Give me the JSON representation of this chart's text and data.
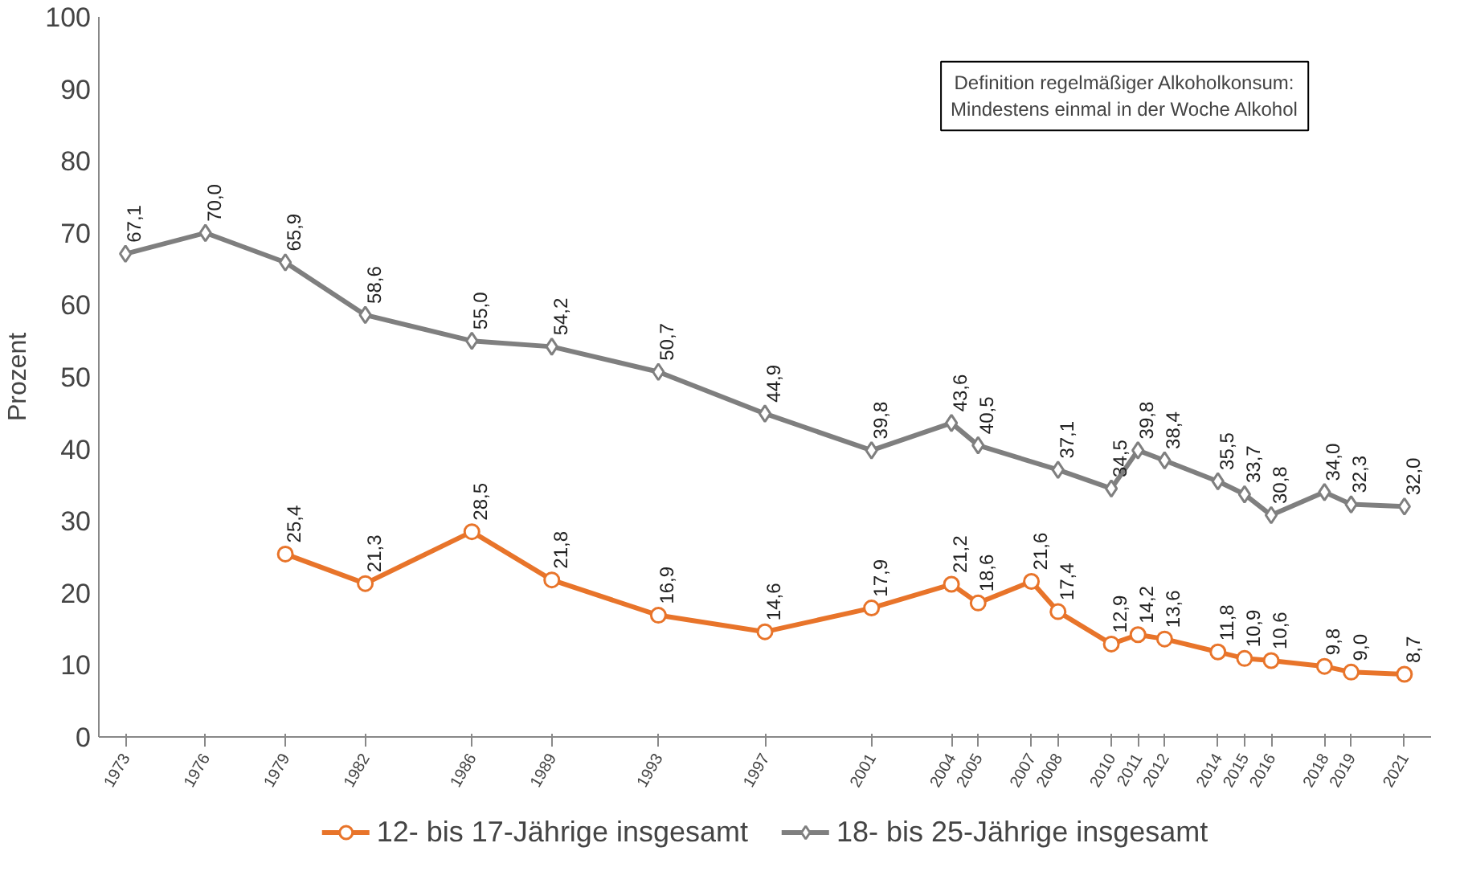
{
  "chart_data": {
    "type": "line",
    "ylabel": "Prozent",
    "xlim": [
      1972,
      2022
    ],
    "xticks": [
      1973,
      1976,
      1979,
      1982,
      1986,
      1989,
      1993,
      1997,
      2001,
      2004,
      2005,
      2007,
      2008,
      2010,
      2011,
      2012,
      2014,
      2015,
      2016,
      2018,
      2019,
      2021
    ],
    "ylim": [
      0,
      100
    ],
    "yticks": [
      0,
      10,
      20,
      30,
      40,
      50,
      60,
      70,
      80,
      90,
      100
    ],
    "grid": false,
    "legend": "bottom",
    "line_style": "solid",
    "annotations": [
      "Definition regelmäßiger Alkoholkonsum:\nMindestens einmal in der Woche Alkohol"
    ],
    "series": [
      {
        "name": "12- bis 17-Jährige insgesamt",
        "color": "#e8742a",
        "marker": "circle",
        "x": [
          1979,
          1982,
          1986,
          1989,
          1993,
          1997,
          2001,
          2004,
          2005,
          2007,
          2008,
          2010,
          2011,
          2012,
          2014,
          2015,
          2016,
          2018,
          2019,
          2021
        ],
        "values": [
          25.4,
          21.3,
          28.5,
          21.8,
          16.9,
          14.6,
          17.9,
          21.2,
          18.6,
          21.6,
          17.4,
          12.9,
          14.2,
          13.6,
          11.8,
          10.9,
          10.6,
          9.8,
          9.0,
          8.7
        ],
        "value_labels": [
          "25,4",
          "21,3",
          "28,5",
          "21,8",
          "16,9",
          "14,6",
          "17,9",
          "21,2",
          "18,6",
          "21,6",
          "17,4",
          "12,9",
          "14,2",
          "13,6",
          "11,8",
          "10,9",
          "10,6",
          "9,8",
          "9,0",
          "8,7"
        ]
      },
      {
        "name": "18- bis 25-Jährige insgesamt",
        "color": "#7f7f7f",
        "marker": "diamond",
        "x": [
          1973,
          1976,
          1979,
          1982,
          1986,
          1989,
          1993,
          1997,
          2001,
          2004,
          2005,
          2008,
          2010,
          2011,
          2012,
          2014,
          2015,
          2016,
          2018,
          2019,
          2021
        ],
        "values": [
          67.1,
          70.0,
          65.9,
          58.6,
          55.0,
          54.2,
          50.7,
          44.9,
          39.8,
          43.6,
          40.5,
          37.1,
          34.5,
          39.8,
          38.4,
          35.5,
          33.7,
          30.8,
          34.0,
          32.3,
          32.0
        ],
        "value_labels": [
          "67,1",
          "70,0",
          "65,9",
          "58,6",
          "55,0",
          "54,2",
          "50,7",
          "44,9",
          "39,8",
          "43,6",
          "40,5",
          "37,1",
          "34,5",
          "39,8",
          "38,4",
          "35,5",
          "33,7",
          "30,8",
          "34,0",
          "32,3",
          "32,0"
        ]
      }
    ]
  }
}
